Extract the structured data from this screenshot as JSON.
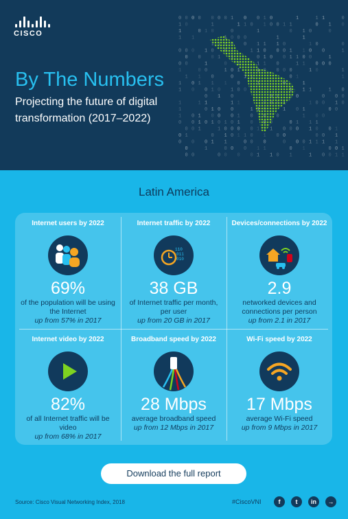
{
  "brand": {
    "name": "CISCO"
  },
  "header": {
    "title": "By The Numbers",
    "subtitle": "Projecting the future of digital transformation (2017–2022)"
  },
  "region": "Latin America",
  "colors": {
    "header_bg": "#123a5a",
    "page_bg": "#19b6e8",
    "accent": "#28c0f0",
    "map_green": "#7ed321",
    "panel_bg": "#45c4ec",
    "dark_text": "#0d3a5c"
  },
  "stats": [
    {
      "title": "Internet users by 2022",
      "icon": "people-icon",
      "value": "69%",
      "desc": "of the population will be using the Internet",
      "growth": "up from 57% in 2017"
    },
    {
      "title": "Internet traffic by 2022",
      "icon": "clock-binary-icon",
      "value": "38 GB",
      "desc": "of Internet traffic per month, per user",
      "growth": "up from 20 GB in 2017"
    },
    {
      "title": "Devices/connections by 2022",
      "icon": "connected-devices-icon",
      "value": "2.9",
      "desc": "networked devices and connections per person",
      "growth": "up from 2.1 in 2017"
    },
    {
      "title": "Internet video by 2022",
      "icon": "play-icon",
      "value": "82%",
      "desc": "of all Internet traffic will be video",
      "growth": "up from 68% in 2017"
    },
    {
      "title": "Broadband speed by 2022",
      "icon": "cable-icon",
      "value": "28 Mbps",
      "desc": "average broadband speed",
      "growth": "up from 12 Mbps in 2017"
    },
    {
      "title": "Wi-Fi speed by 2022",
      "icon": "wifi-icon",
      "value": "17 Mbps",
      "desc": "average Wi-Fi speed",
      "growth": "up from 9 Mbps in 2017"
    }
  ],
  "cta": {
    "label": "Download the full report"
  },
  "footer": {
    "source": "Source: Cisco Visual Networking Index, 2018",
    "hashtag": "#CiscoVNI",
    "social": [
      {
        "name": "facebook-icon",
        "glyph": "f"
      },
      {
        "name": "twitter-icon",
        "glyph": "t"
      },
      {
        "name": "linkedin-icon",
        "glyph": "in"
      },
      {
        "name": "share-icon",
        "glyph": "→"
      }
    ]
  }
}
